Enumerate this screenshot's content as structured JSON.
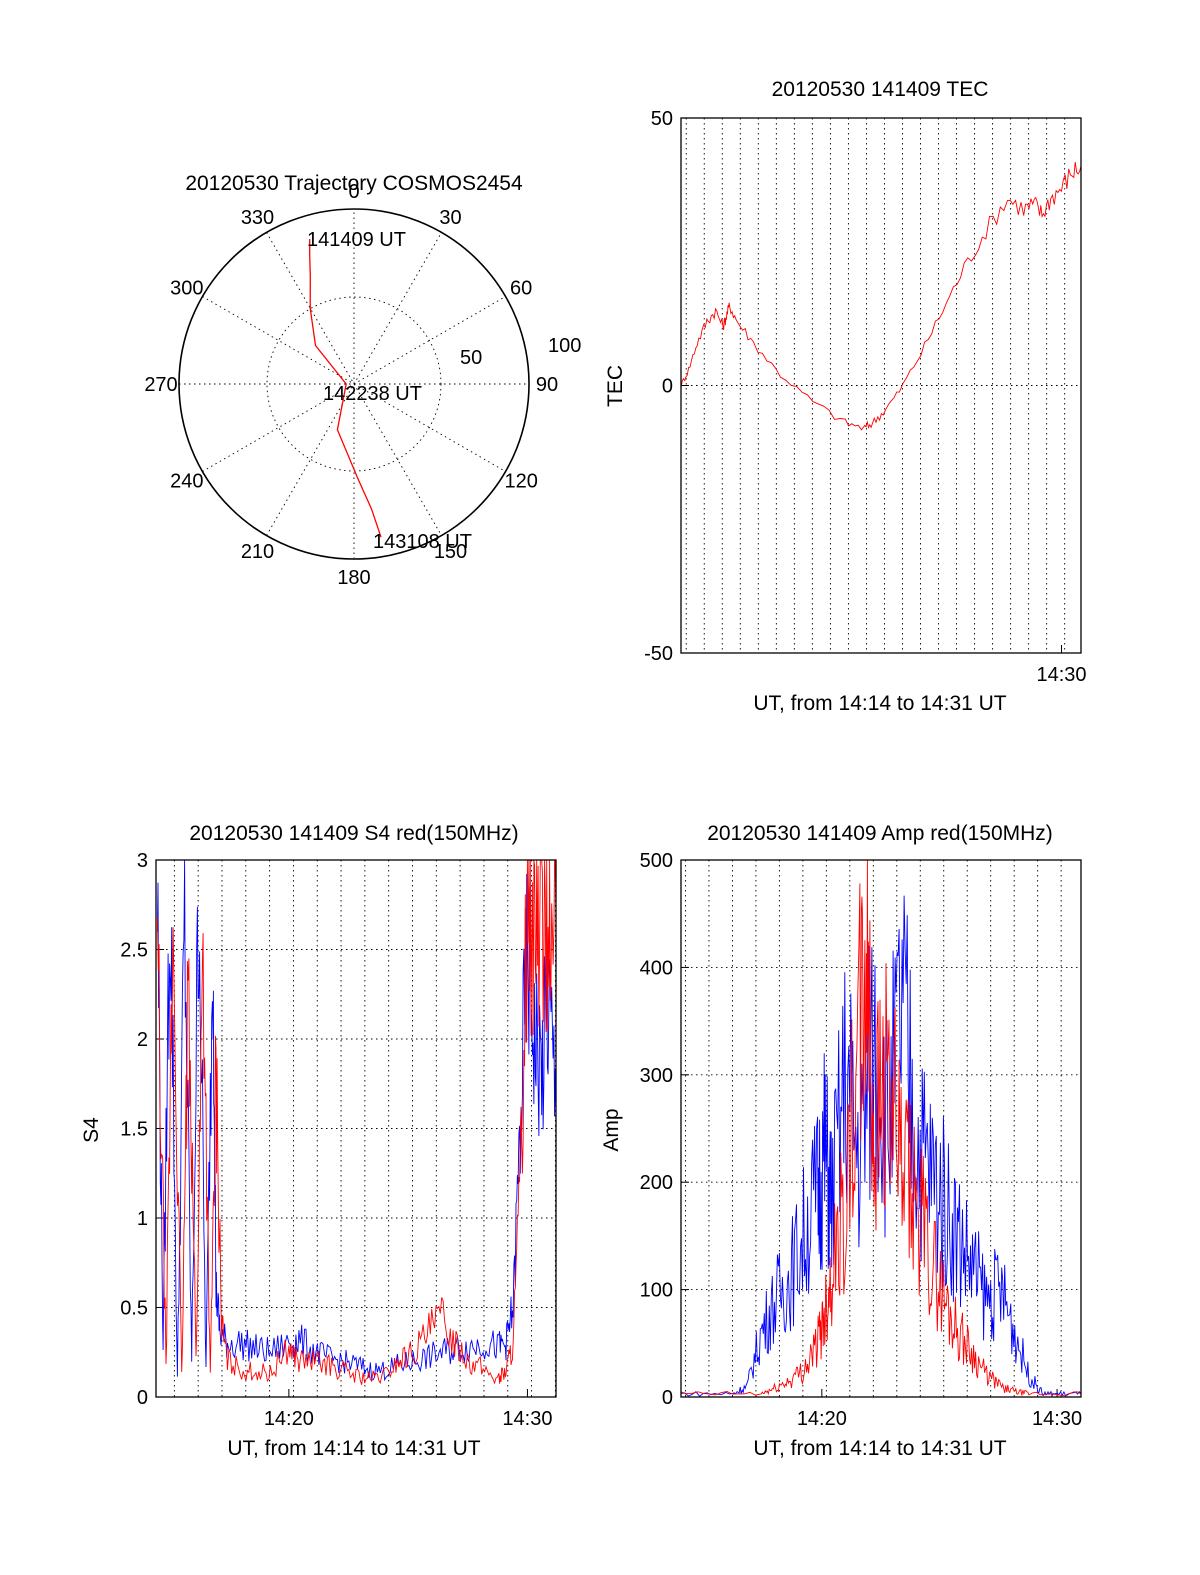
{
  "chart_data": [
    {
      "type": "polar",
      "title": "20120530 Trajectory COSMOS2454",
      "angle_ticks": [
        "0",
        "30",
        "60",
        "90",
        "120",
        "150",
        "180",
        "210",
        "240",
        "270",
        "300",
        "330"
      ],
      "radial_ticks": [
        "50",
        "100"
      ],
      "grid": true,
      "series": [
        {
          "color": "#ff0000",
          "azimuth_deg": [
            343,
            341,
            338,
            330,
            315,
            270,
            200,
            178,
            172,
            170
          ],
          "elevation_deg": [
            12,
            20,
            30,
            45,
            62,
            86,
            65,
            42,
            25,
            10
          ]
        }
      ],
      "annotations": [
        {
          "text": "141409 UT",
          "azimuth_deg": 343,
          "elevation_deg": 12
        },
        {
          "text": "142238 UT",
          "azimuth_deg": 200,
          "elevation_deg": 88
        },
        {
          "text": "143108 UT",
          "azimuth_deg": 170,
          "elevation_deg": 10
        }
      ]
    },
    {
      "type": "line",
      "title": "20120530 141409 TEC",
      "xlabel": "UT, from 14:14 to 14:31 UT",
      "ylabel": "TEC",
      "xlim": [
        14.148,
        14.518
      ],
      "ylim": [
        -50,
        50
      ],
      "y_ticks": [
        -50,
        0,
        50
      ],
      "x_ticks": [
        {
          "value": 14.5,
          "label": "14:30"
        }
      ],
      "minor_x_grid_step": 0.01667,
      "grid": true,
      "series": [
        {
          "color": "#ff0000",
          "x": [
            14.148,
            14.155,
            14.163,
            14.172,
            14.18,
            14.187,
            14.19,
            14.193,
            14.2,
            14.215,
            14.24,
            14.27,
            14.3,
            14.318,
            14.325,
            14.335,
            14.35,
            14.37,
            14.39,
            14.41,
            14.43,
            14.45,
            14.465,
            14.475,
            14.482,
            14.49,
            14.5,
            14.51,
            14.518
          ],
          "y": [
            0,
            3,
            8,
            12,
            14,
            11,
            13,
            15,
            12,
            8,
            2,
            -3,
            -7,
            -8,
            -7,
            -5,
            -1,
            6,
            14,
            22,
            29,
            35,
            33,
            34,
            32,
            35,
            37,
            40,
            41
          ]
        }
      ]
    },
    {
      "type": "line",
      "title": "20120530 141409 S4 red(150MHz)",
      "xlabel": "UT, from 14:14 to 14:31 UT",
      "ylabel": "S4",
      "xlim": [
        14.24,
        14.52
      ],
      "ylim": [
        0,
        3
      ],
      "y_ticks": [
        0,
        0.5,
        1,
        1.5,
        2,
        2.5,
        3
      ],
      "x_ticks": [
        {
          "value": 14.333,
          "label": "14:20"
        },
        {
          "value": 14.5,
          "label": "14:30"
        }
      ],
      "minor_x_grid_step": 0.01667,
      "grid": true,
      "series": [
        {
          "color": "#0000ff",
          "x": [
            14.241,
            14.245,
            14.25,
            14.255,
            14.26,
            14.265,
            14.27,
            14.275,
            14.28,
            14.282,
            14.285,
            14.29,
            14.3,
            14.31,
            14.32,
            14.333,
            14.34,
            14.35,
            14.36,
            14.37,
            14.38,
            14.39,
            14.4,
            14.41,
            14.42,
            14.43,
            14.44,
            14.45,
            14.46,
            14.47,
            14.48,
            14.485,
            14.49,
            14.495,
            14.5,
            14.505,
            14.51,
            14.515,
            14.52
          ],
          "y": [
            2.8,
            0.3,
            2.9,
            0.1,
            2.7,
            0.2,
            2.9,
            0.15,
            2.6,
            0.6,
            0.35,
            0.3,
            0.3,
            0.27,
            0.25,
            0.3,
            0.32,
            0.26,
            0.22,
            0.2,
            0.18,
            0.15,
            0.15,
            0.18,
            0.2,
            0.22,
            0.25,
            0.27,
            0.28,
            0.3,
            0.28,
            0.3,
            0.5,
            1.5,
            2.5,
            2.0,
            1.8,
            2.2,
            1.6
          ]
        },
        {
          "color": "#ff0000",
          "x": [
            14.241,
            14.247,
            14.252,
            14.258,
            14.263,
            14.268,
            14.273,
            14.278,
            14.282,
            14.286,
            14.29,
            14.3,
            14.31,
            14.32,
            14.333,
            14.34,
            14.35,
            14.36,
            14.37,
            14.38,
            14.39,
            14.4,
            14.41,
            14.42,
            14.43,
            14.44,
            14.45,
            14.46,
            14.47,
            14.48,
            14.485,
            14.49,
            14.495,
            14.5,
            14.505,
            14.51,
            14.515,
            14.52
          ],
          "y": [
            2.5,
            0.2,
            2.6,
            0.1,
            2.4,
            0.2,
            2.5,
            0.1,
            1.8,
            0.4,
            0.2,
            0.15,
            0.14,
            0.13,
            0.28,
            0.2,
            0.2,
            0.18,
            0.15,
            0.12,
            0.1,
            0.12,
            0.2,
            0.25,
            0.35,
            0.45,
            0.3,
            0.2,
            0.15,
            0.1,
            0.15,
            0.3,
            1.2,
            2.8,
            2.6,
            2.9,
            2.5,
            2.7
          ]
        }
      ]
    },
    {
      "type": "line",
      "title": "20120530 141409 Amp red(150MHz)",
      "xlabel": "UT, from 14:14 to 14:31 UT",
      "ylabel": "Amp",
      "xlim": [
        14.233,
        14.517
      ],
      "ylim": [
        0,
        500
      ],
      "y_ticks": [
        0,
        100,
        200,
        300,
        400,
        500
      ],
      "x_ticks": [
        {
          "value": 14.333,
          "label": "14:20"
        },
        {
          "value": 14.5,
          "label": "14:30"
        }
      ],
      "minor_x_grid_step": 0.01667,
      "grid": true,
      "series": [
        {
          "color": "#0000ff",
          "x": [
            14.233,
            14.27,
            14.28,
            14.29,
            14.3,
            14.31,
            14.32,
            14.33,
            14.335,
            14.34,
            14.35,
            14.36,
            14.37,
            14.38,
            14.39,
            14.4,
            14.41,
            14.42,
            14.43,
            14.44,
            14.45,
            14.46,
            14.47,
            14.48,
            14.49,
            14.5,
            14.517
          ],
          "y": [
            3,
            3,
            10,
            60,
            90,
            110,
            150,
            190,
            230,
            180,
            300,
            220,
            340,
            250,
            360,
            240,
            210,
            180,
            150,
            120,
            90,
            100,
            60,
            20,
            3,
            3,
            3
          ]
        },
        {
          "color": "#ff0000",
          "x": [
            14.233,
            14.29,
            14.3,
            14.31,
            14.32,
            14.33,
            14.335,
            14.34,
            14.35,
            14.36,
            14.365,
            14.37,
            14.38,
            14.39,
            14.4,
            14.41,
            14.42,
            14.43,
            14.44,
            14.45,
            14.46,
            14.47,
            14.48,
            14.517
          ],
          "y": [
            3,
            3,
            8,
            15,
            25,
            50,
            80,
            120,
            180,
            330,
            410,
            260,
            300,
            200,
            180,
            130,
            90,
            60,
            40,
            20,
            10,
            5,
            3,
            3
          ]
        }
      ]
    }
  ]
}
